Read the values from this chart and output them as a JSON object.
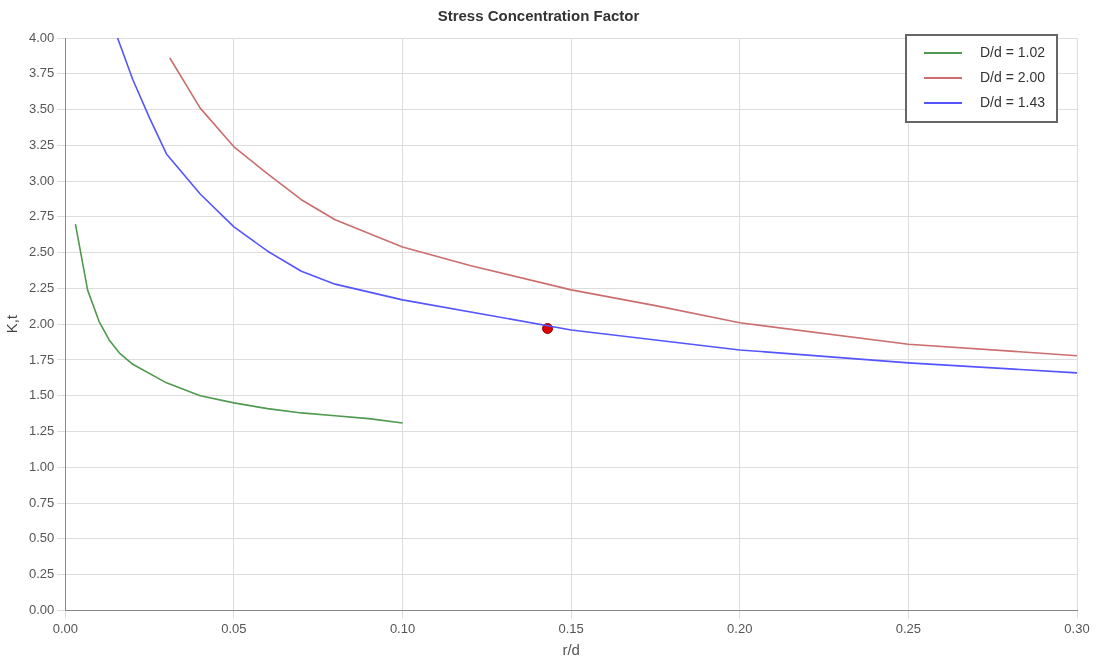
{
  "chart_data": {
    "type": "line",
    "title": "Stress Concentration Factor",
    "xlabel": "r/d",
    "ylabel": "K,t",
    "xlim": [
      0,
      0.3
    ],
    "ylim": [
      0,
      4
    ],
    "xticks": [
      {
        "value": 0,
        "label": "0.00"
      },
      {
        "value": 0.05,
        "label": "0.05"
      },
      {
        "value": 0.1,
        "label": "0.10"
      },
      {
        "value": 0.15,
        "label": "0.15"
      },
      {
        "value": 0.2,
        "label": "0.20"
      },
      {
        "value": 0.25,
        "label": "0.25"
      },
      {
        "value": 0.3,
        "label": "0.30"
      }
    ],
    "yticks": [
      {
        "value": 0,
        "label": "0.00"
      },
      {
        "value": 0.25,
        "label": "0.25"
      },
      {
        "value": 0.5,
        "label": "0.50"
      },
      {
        "value": 0.75,
        "label": "0.75"
      },
      {
        "value": 1,
        "label": "1.00"
      },
      {
        "value": 1.25,
        "label": "1.25"
      },
      {
        "value": 1.5,
        "label": "1.50"
      },
      {
        "value": 1.75,
        "label": "1.75"
      },
      {
        "value": 2,
        "label": "2.00"
      },
      {
        "value": 2.25,
        "label": "2.25"
      },
      {
        "value": 2.5,
        "label": "2.50"
      },
      {
        "value": 2.75,
        "label": "2.75"
      },
      {
        "value": 3,
        "label": "3.00"
      },
      {
        "value": 3.25,
        "label": "3.25"
      },
      {
        "value": 3.5,
        "label": "3.50"
      },
      {
        "value": 3.75,
        "label": "3.75"
      },
      {
        "value": 4,
        "label": "4.00"
      }
    ],
    "grid": true,
    "legend": "top right",
    "marker": "none",
    "line_style": "solid",
    "series": [
      {
        "name": "D/d = 1.02",
        "color": "#4f9a4f",
        "x": [
          0.003,
          0.0066,
          0.01,
          0.013,
          0.016,
          0.02,
          0.03,
          0.04,
          0.05,
          0.06,
          0.07,
          0.08,
          0.09,
          0.1
        ],
        "values": [
          2.7,
          2.24,
          2.02,
          1.89,
          1.8,
          1.72,
          1.59,
          1.5,
          1.45,
          1.41,
          1.38,
          1.36,
          1.34,
          1.31
        ]
      },
      {
        "name": "D/d = 2.00",
        "color": "#cc6e6e",
        "x": [
          0.031,
          0.04,
          0.05,
          0.06,
          0.07,
          0.08,
          0.1,
          0.12,
          0.15,
          0.175,
          0.2,
          0.25,
          0.3
        ],
        "values": [
          3.86,
          3.51,
          3.24,
          3.05,
          2.87,
          2.73,
          2.54,
          2.41,
          2.24,
          2.13,
          2.01,
          1.86,
          1.78
        ]
      },
      {
        "name": "D/d = 1.43",
        "color": "#5555ff",
        "x": [
          0.0155,
          0.02,
          0.025,
          0.03,
          0.04,
          0.05,
          0.06,
          0.07,
          0.08,
          0.1,
          0.15,
          0.2,
          0.25,
          0.3
        ],
        "values": [
          4.0,
          3.71,
          3.44,
          3.19,
          2.91,
          2.68,
          2.51,
          2.37,
          2.28,
          2.17,
          1.96,
          1.82,
          1.73,
          1.66
        ]
      },
      {
        "type": "scatter",
        "marker": "circle",
        "color": "#dd0000",
        "x": [
          0.143
        ],
        "values": [
          1.97
        ]
      }
    ]
  }
}
